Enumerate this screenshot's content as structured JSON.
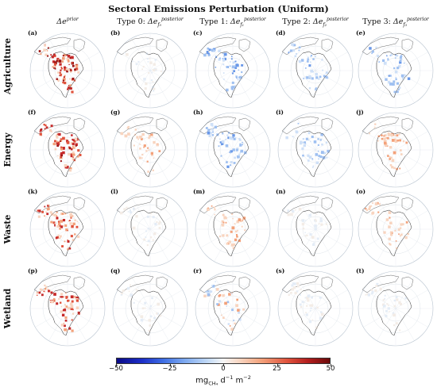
{
  "title": "Sectoral Emissions Perturbation (Uniform)",
  "columns": [
    {
      "type_prefix": "",
      "symbol": "Δe",
      "superscript": "prior",
      "subscript": ""
    },
    {
      "type_prefix": "Type 0: ",
      "symbol": "Δe",
      "superscript": "posterior",
      "subscript": "f₀"
    },
    {
      "type_prefix": "Type 1: ",
      "symbol": "Δe",
      "superscript": "posterior",
      "subscript": "f₁"
    },
    {
      "type_prefix": "Type 2: ",
      "symbol": "Δe",
      "superscript": "posterior",
      "subscript": "f₂"
    },
    {
      "type_prefix": "Type 3: ",
      "symbol": "Δe",
      "superscript": "posterior",
      "subscript": "f₃"
    }
  ],
  "rows": [
    "Agriculture",
    "Energy",
    "Waste",
    "Wetland"
  ],
  "panel_letters": [
    "(a)",
    "(b)",
    "(c)",
    "(d)",
    "(e)",
    "(f)",
    "(g)",
    "(h)",
    "(i)",
    "(j)",
    "(k)",
    "(l)",
    "(m)",
    "(n)",
    "(o)",
    "(p)",
    "(q)",
    "(r)",
    "(s)",
    "(t)"
  ],
  "panel_intensity": [
    [
      1.0,
      0.15,
      0.6,
      0.45,
      0.45
    ],
    [
      0.9,
      0.25,
      0.55,
      0.35,
      0.4
    ],
    [
      0.7,
      0.1,
      0.3,
      0.2,
      0.25
    ],
    [
      0.8,
      0.1,
      0.35,
      0.25,
      0.2
    ]
  ],
  "panel_sign": [
    [
      "pos",
      "neutral",
      "neg",
      "neg",
      "neg"
    ],
    [
      "pos",
      "pos",
      "neg",
      "neg",
      "pos"
    ],
    [
      "pos",
      "neutral",
      "pos",
      "neutral",
      "pos"
    ],
    [
      "pos",
      "neutral",
      "mixed",
      "neutral",
      "neutral"
    ]
  ],
  "colorbar": {
    "ticks": [
      "−50",
      "−25",
      "0",
      "25",
      "50"
    ],
    "unit_base": "mg",
    "unit_sub": "CH₄",
    "unit_rest": " d",
    "unit_rest_sup": "−1",
    "unit_m": " m",
    "unit_m_sup": "−2",
    "range": [
      -50,
      50
    ],
    "colors": {
      "neg_max": "#0a0a88",
      "neutral": "#f6f6f6",
      "pos_max": "#6b0a0a"
    }
  }
}
